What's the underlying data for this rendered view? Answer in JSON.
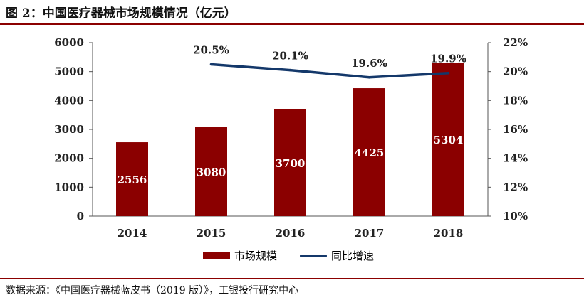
{
  "figure_title": "图 2：中国医疗器械市场规模情况（亿元）",
  "source_note": "数据来源：《中国医疗器械蓝皮书（2019 版）》，工银投行研究中心",
  "colors": {
    "bar": "#8b0000",
    "line": "#14386a",
    "rule": "#8b0000"
  },
  "chart_data": {
    "type": "bar",
    "categories": [
      "2014",
      "2015",
      "2016",
      "2017",
      "2018"
    ],
    "series": [
      {
        "name": "市场规模",
        "type": "bar",
        "axis": "left",
        "values": [
          2556,
          3080,
          3700,
          4425,
          5304
        ],
        "labels": [
          "2556",
          "3080",
          "3700",
          "4425",
          "5304"
        ]
      },
      {
        "name": "同比增速",
        "type": "line",
        "axis": "right",
        "values": [
          null,
          20.5,
          20.1,
          19.6,
          19.9
        ],
        "labels": [
          "",
          "20.5%",
          "20.1%",
          "19.6%",
          "19.9%"
        ]
      }
    ],
    "y_left": {
      "range": [
        0,
        6000
      ],
      "ticks": [
        "0",
        "1000",
        "2000",
        "3000",
        "4000",
        "5000",
        "6000"
      ]
    },
    "y_right": {
      "range": [
        10,
        22
      ],
      "ticks": [
        "10%",
        "12%",
        "14%",
        "16%",
        "18%",
        "20%",
        "22%"
      ]
    },
    "grid": false,
    "legend_position": "bottom"
  }
}
